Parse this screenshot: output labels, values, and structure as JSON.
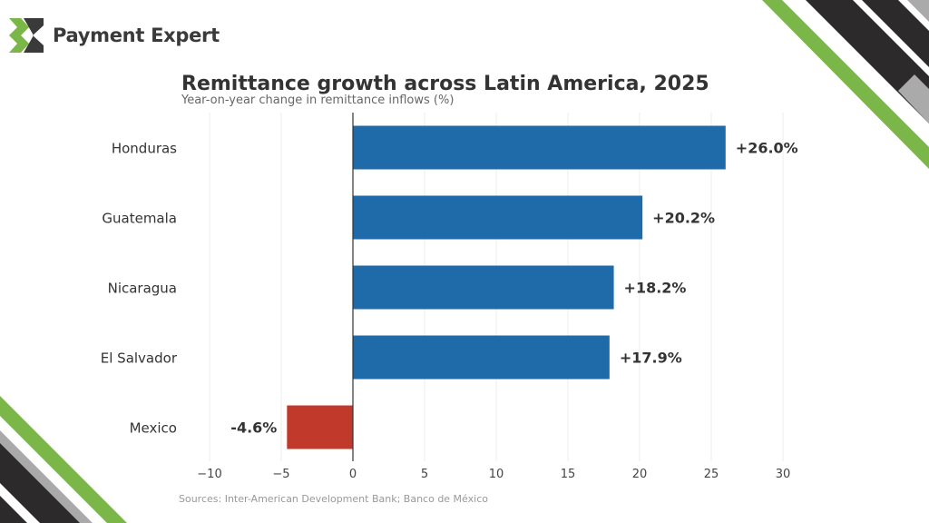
{
  "brand": {
    "name": "Payment Expert",
    "logo_icon": "payment-expert-x-logo",
    "accent": "#7ab648",
    "dark": "#3a3a3a"
  },
  "title": "Remittance growth across Latin America, 2025",
  "subtitle": "Year-on-year change in remittance inflows (%)",
  "source": "Sources: Inter-American Development Bank; Banco de México",
  "chart_data": {
    "type": "bar",
    "orientation": "horizontal",
    "title": "Remittance growth across Latin America, 2025",
    "subtitle": "Year-on-year change in remittance inflows (%)",
    "categories": [
      "Honduras",
      "Guatemala",
      "Nicaragua",
      "El Salvador",
      "Mexico"
    ],
    "values": [
      26.0,
      20.2,
      18.2,
      17.9,
      -4.6
    ],
    "data_labels": [
      "+26.0%",
      "+20.2%",
      "+18.2%",
      "+17.9%",
      "-4.6%"
    ],
    "xlim": [
      -10,
      30
    ],
    "xticks": [
      -10,
      -5,
      0,
      5,
      10,
      15,
      20,
      25,
      30
    ],
    "xtick_labels": [
      "−10",
      "−5",
      "0",
      "5",
      "10",
      "15",
      "20",
      "25",
      "30"
    ],
    "grid": "vertical",
    "colors": {
      "positive": "#1f6aa8",
      "negative": "#c0392b"
    }
  }
}
